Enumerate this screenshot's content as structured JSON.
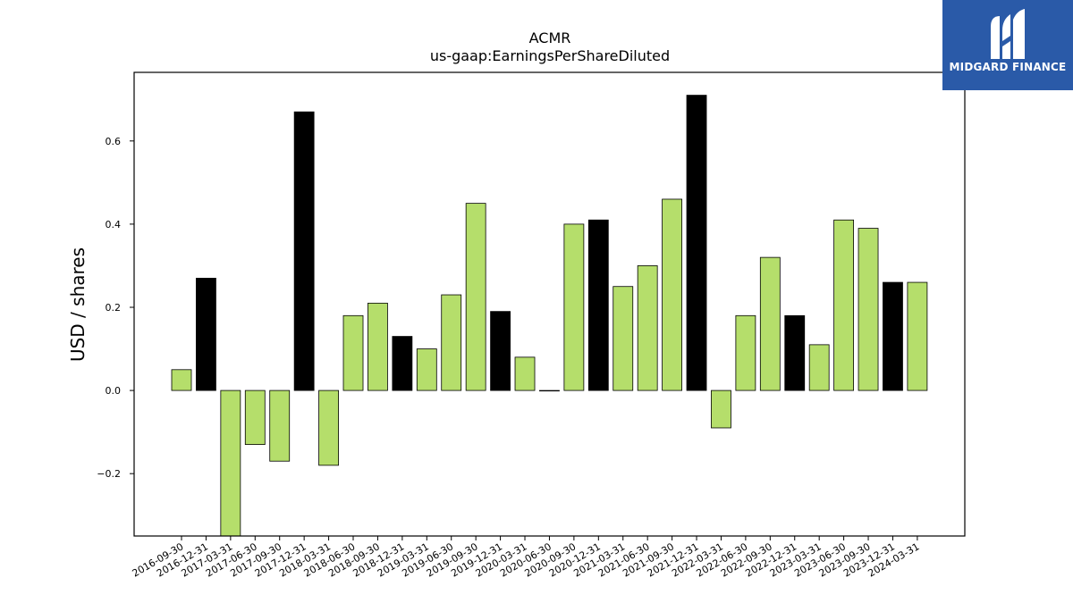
{
  "chart_data": {
    "type": "bar",
    "title": "ACMR",
    "subtitle": "us-gaap:EarningsPerShareDiluted",
    "ylabel": "USD / shares",
    "ylim": [
      -0.35,
      0.765
    ],
    "yticks": [
      -0.2,
      0.0,
      0.2,
      0.4,
      0.6
    ],
    "ytick_labels": [
      "−0.2",
      "0.0",
      "0.2",
      "0.4",
      "0.6"
    ],
    "grid": false,
    "colors": {
      "quarter": "#b5de6b",
      "annual": "#000000",
      "edge": "#000000"
    },
    "categories": [
      "2016-09-30",
      "2016-12-31",
      "2017-03-31",
      "2017-06-30",
      "2017-09-30",
      "2017-12-31",
      "2018-03-31",
      "2018-06-30",
      "2018-09-30",
      "2018-12-31",
      "2019-03-31",
      "2019-06-30",
      "2019-09-30",
      "2019-12-31",
      "2020-03-31",
      "2020-06-30",
      "2020-09-30",
      "2020-12-31",
      "2021-03-31",
      "2021-06-30",
      "2021-09-30",
      "2021-12-31",
      "2022-03-31",
      "2022-06-30",
      "2022-09-30",
      "2022-12-31",
      "2023-03-31",
      "2023-06-30",
      "2023-09-30",
      "2023-12-31",
      "2024-03-31"
    ],
    "values": [
      0.05,
      0.27,
      -0.35,
      -0.13,
      -0.17,
      0.67,
      -0.18,
      0.18,
      0.21,
      0.13,
      0.1,
      0.23,
      0.45,
      0.19,
      0.08,
      0.0,
      0.4,
      0.41,
      0.25,
      0.3,
      0.46,
      0.71,
      -0.09,
      0.18,
      0.32,
      0.18,
      0.11,
      0.41,
      0.39,
      0.26,
      0.26
    ],
    "bar_kind": [
      "q",
      "a",
      "q",
      "q",
      "q",
      "a",
      "q",
      "q",
      "q",
      "a",
      "q",
      "q",
      "q",
      "a",
      "q",
      "q",
      "q",
      "a",
      "q",
      "q",
      "q",
      "a",
      "q",
      "q",
      "q",
      "a",
      "q",
      "q",
      "q",
      "a",
      "q"
    ]
  },
  "logo": {
    "text": "MIDGARD FINANCE",
    "icon": "midgard-m-logo-icon",
    "background": "#2a5aa8"
  }
}
